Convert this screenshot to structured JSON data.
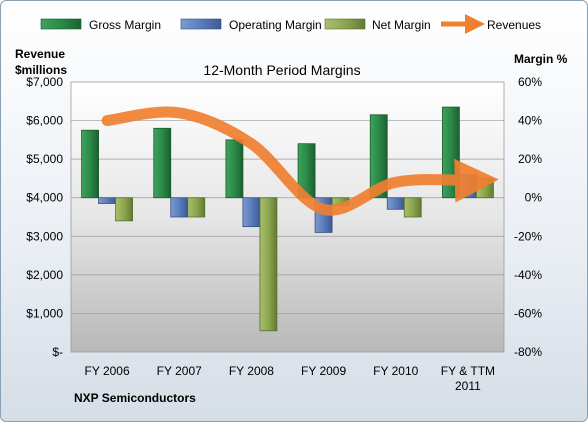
{
  "chart_data": {
    "type": "bar",
    "title": "12-Month Period Margins",
    "footer": "NXP Semiconductors",
    "left_axis_title": [
      "Revenue",
      "$millions"
    ],
    "right_axis_title": "Margin %",
    "categories": [
      [
        "FY 2006"
      ],
      [
        "FY 2007"
      ],
      [
        "FY 2008"
      ],
      [
        "FY 2009"
      ],
      [
        "FY 2010"
      ],
      [
        "FY & TTM",
        "2011"
      ]
    ],
    "left_ticks": [
      "$7,000",
      "$6,000",
      "$5,000",
      "$4,000",
      "$3,000",
      "$2,000",
      "$1,000",
      "$-"
    ],
    "right_ticks": [
      "60%",
      "40%",
      "20%",
      "0%",
      "-20%",
      "-40%",
      "-60%",
      "-80%"
    ],
    "left_axis": {
      "min": 0,
      "max": 7000
    },
    "right_axis": {
      "min": -80,
      "max": 60
    },
    "series": [
      {
        "name": "Gross Margin",
        "color": "#1f7a3e",
        "values": [
          35,
          36,
          30,
          28,
          43,
          47
        ]
      },
      {
        "name": "Operating Margin",
        "color": "#4f6fa8",
        "values": [
          -3,
          -10,
          -15,
          -18,
          -6,
          12
        ]
      },
      {
        "name": "Net Margin",
        "color": "#8ca64f",
        "values": [
          -12,
          -10,
          -69,
          -4,
          -10,
          10
        ]
      },
      {
        "name": "Revenues",
        "color": "#f07f30",
        "type": "line",
        "axis": "left",
        "values": [
          6000,
          6200,
          5400,
          3700,
          4400,
          4450
        ]
      }
    ],
    "grid": true,
    "legend_position": "top"
  }
}
